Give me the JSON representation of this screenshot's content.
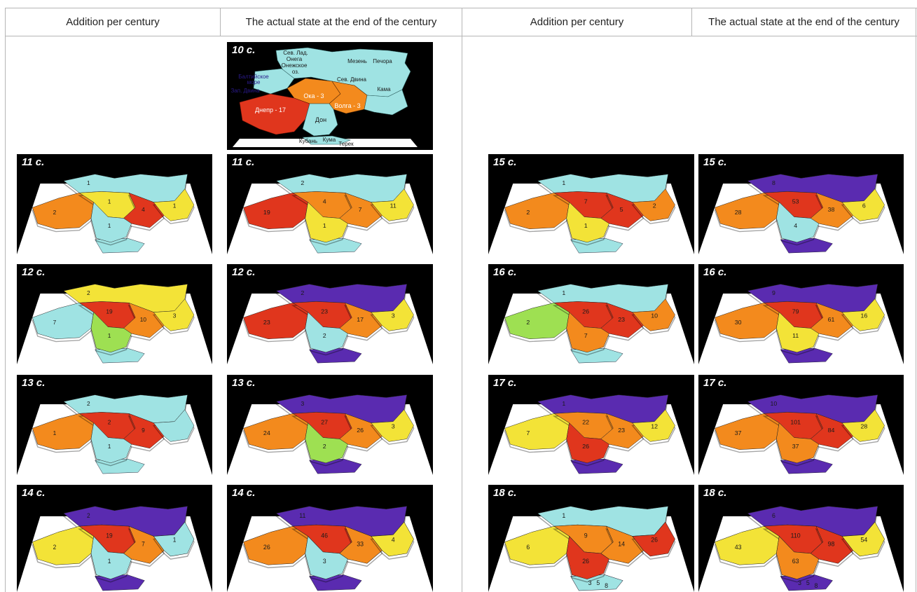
{
  "headers": {
    "left_addition": "Addition per century",
    "left_actual": "The actual state at the end of the century",
    "right_addition": "Addition per century",
    "right_actual": "The actual state at the end of the century"
  },
  "colors": {
    "cyan": "#9fe3e3",
    "yellow": "#f3e337",
    "orange": "#f38a1d",
    "red": "#e0361d",
    "green": "#9ee052",
    "purple": "#5a2bb0",
    "background": "#000000"
  },
  "first_map": {
    "century": "10 c.",
    "labels": {
      "sev_lad": "Сев. Лад.",
      "onega": "Онега",
      "onezhskoe": "Онежское",
      "oz": "оз.",
      "mezen": "Мезень",
      "pechora": "Печора",
      "baltic": "Балтийское",
      "more": "море",
      "sev_dvina": "Сев. Двина",
      "zap_dvina": "Зап. Двина",
      "kama": "Кама",
      "oka": "Ока - 3",
      "volga": "Волга - 3",
      "dnepr": "Днепр - 17",
      "don": "Дон",
      "kuban": "Кубань",
      "kuma": "Кума",
      "terek": "Терек"
    }
  },
  "panels": [
    {
      "id": "p11a",
      "century": "11 c.",
      "labels": [
        "1",
        "2",
        "1",
        "4",
        "1",
        "1"
      ],
      "fills": [
        "cyan",
        "orange",
        "yellow",
        "red",
        "yellow",
        "cyan"
      ]
    },
    {
      "id": "p11b",
      "century": "11 c.",
      "labels": [
        "2",
        "19",
        "4",
        "7",
        "11",
        "1"
      ],
      "fills": [
        "cyan",
        "red",
        "orange",
        "orange",
        "yellow",
        "yellow"
      ]
    },
    {
      "id": "p12a",
      "century": "12 c.",
      "labels": [
        "2",
        "7",
        "19",
        "10",
        "3",
        "1"
      ],
      "fills": [
        "yellow",
        "cyan",
        "red",
        "orange",
        "yellow",
        "green"
      ]
    },
    {
      "id": "p12b",
      "century": "12 c.",
      "labels": [
        "2",
        "23",
        "23",
        "17",
        "3",
        "2"
      ],
      "fills": [
        "purple",
        "red",
        "red",
        "orange",
        "yellow",
        "cyan"
      ]
    },
    {
      "id": "p13a",
      "century": "13 c.",
      "labels": [
        "2",
        "1",
        "2",
        "9",
        "",
        "1"
      ],
      "fills": [
        "cyan",
        "orange",
        "red",
        "red",
        "cyan",
        "cyan"
      ]
    },
    {
      "id": "p13b",
      "century": "13 c.",
      "labels": [
        "3",
        "24",
        "27",
        "26",
        "3",
        "2"
      ],
      "fills": [
        "purple",
        "orange",
        "red",
        "orange",
        "yellow",
        "green"
      ]
    },
    {
      "id": "p14a",
      "century": "14 c.",
      "labels": [
        "2",
        "2",
        "19",
        "7",
        "1",
        "1"
      ],
      "fills": [
        "purple",
        "yellow",
        "red",
        "orange",
        "cyan",
        "cyan"
      ]
    },
    {
      "id": "p14b",
      "century": "14 c.",
      "labels": [
        "11",
        "26",
        "46",
        "33",
        "4",
        "3"
      ],
      "fills": [
        "purple",
        "orange",
        "red",
        "orange",
        "yellow",
        "cyan"
      ]
    },
    {
      "id": "p15a",
      "century": "15 c.",
      "labels": [
        "1",
        "2",
        "7",
        "5",
        "2",
        "1"
      ],
      "fills": [
        "cyan",
        "orange",
        "red",
        "red",
        "orange",
        "yellow"
      ]
    },
    {
      "id": "p15b",
      "century": "15 c.",
      "labels": [
        "8",
        "28",
        "53",
        "38",
        "6",
        "4"
      ],
      "fills": [
        "purple",
        "orange",
        "red",
        "orange",
        "yellow",
        "cyan"
      ]
    },
    {
      "id": "p16a",
      "century": "16 c.",
      "labels": [
        "1",
        "2",
        "26",
        "23",
        "10",
        "7"
      ],
      "fills": [
        "cyan",
        "green",
        "red",
        "red",
        "orange",
        "orange"
      ]
    },
    {
      "id": "p16b",
      "century": "16 c.",
      "labels": [
        "9",
        "30",
        "79",
        "61",
        "16",
        "11"
      ],
      "fills": [
        "purple",
        "orange",
        "red",
        "orange",
        "yellow",
        "yellow"
      ]
    },
    {
      "id": "p17a",
      "century": "17 c.",
      "labels": [
        "1",
        "7",
        "22",
        "23",
        "12",
        "26"
      ],
      "fills": [
        "purple",
        "yellow",
        "orange",
        "orange",
        "yellow",
        "red"
      ]
    },
    {
      "id": "p17b",
      "century": "17 c.",
      "labels": [
        "10",
        "37",
        "101",
        "84",
        "28",
        "37"
      ],
      "fills": [
        "purple",
        "orange",
        "red",
        "red",
        "yellow",
        "orange"
      ]
    },
    {
      "id": "p18a",
      "century": "18 c.",
      "labels": [
        "1",
        "6",
        "9",
        "14",
        "26",
        "26"
      ],
      "fills": [
        "cyan",
        "yellow",
        "orange",
        "orange",
        "red",
        "red"
      ],
      "extra": [
        "3",
        "5",
        "8"
      ]
    },
    {
      "id": "p18b",
      "century": "18 c.",
      "labels": [
        "6",
        "43",
        "110",
        "98",
        "54",
        "63"
      ],
      "fills": [
        "purple",
        "yellow",
        "red",
        "red",
        "yellow",
        "orange"
      ],
      "extra": [
        "3",
        "5",
        "8"
      ]
    }
  ]
}
